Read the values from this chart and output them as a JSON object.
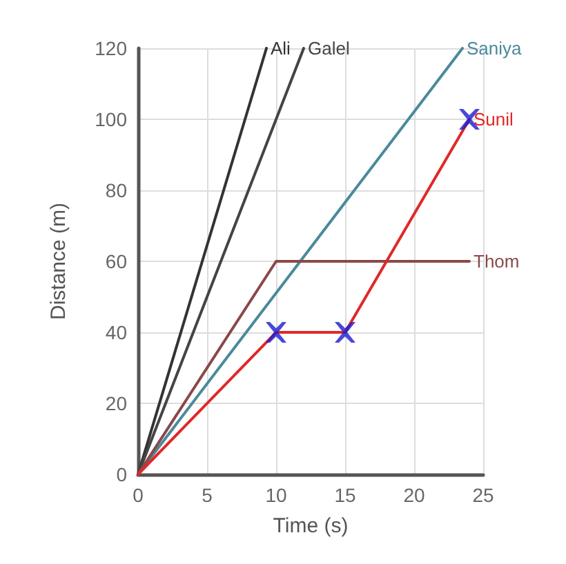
{
  "chart_data": {
    "type": "line",
    "xlabel": "Time (s)",
    "ylabel": "Distance (m)",
    "xlim": [
      0,
      25
    ],
    "xticks": [
      0,
      5,
      10,
      15,
      20,
      25
    ],
    "ylim": [
      0,
      120
    ],
    "yticks": [
      0,
      20,
      40,
      60,
      80,
      100,
      120
    ],
    "grid": true,
    "legend": false,
    "marker": "none",
    "line_style": "solid",
    "series": [
      {
        "name": "Ali",
        "color": "#333333",
        "x": [
          0,
          9.3
        ],
        "values": [
          0,
          120
        ]
      },
      {
        "name": "Galel",
        "color": "#444444",
        "x": [
          0,
          12
        ],
        "values": [
          0,
          120
        ]
      },
      {
        "name": "Saniya",
        "color": "#4a8a9a",
        "x": [
          0,
          23.5
        ],
        "values": [
          0,
          120
        ]
      },
      {
        "name": "Thom",
        "color": "#8a4848",
        "x": [
          0,
          10,
          24
        ],
        "values": [
          0,
          60,
          60
        ]
      },
      {
        "name": "Sunil",
        "color": "#e02828",
        "x": [
          0,
          10,
          15,
          24
        ],
        "values": [
          0,
          40,
          40,
          100
        ]
      },
      {
        "type": "scatter",
        "color": "#1a1ad0",
        "marker": "cross",
        "x": [
          10,
          15,
          24
        ],
        "values": [
          40,
          40,
          100
        ]
      }
    ]
  }
}
